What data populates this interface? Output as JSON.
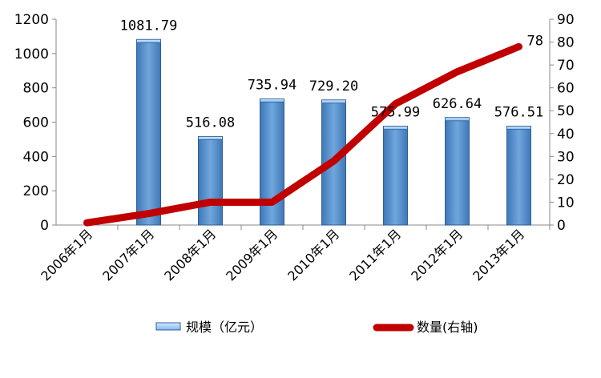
{
  "chart_data": {
    "type": "bar+line",
    "categories": [
      "2006年1月",
      "2007年1月",
      "2008年1月",
      "2009年1月",
      "2010年1月",
      "2011年1月",
      "2012年1月",
      "2013年1月"
    ],
    "series": [
      {
        "name": "规模（亿元）",
        "type": "bar",
        "axis": "left",
        "color": "#5b9bd5",
        "values": [
          null,
          1081.79,
          516.08,
          735.94,
          729.2,
          575.99,
          626.64,
          576.51
        ],
        "labels": [
          "",
          "1081.79",
          "516.08",
          "735.94",
          "729.20",
          "575.99",
          "626.64",
          "576.51"
        ]
      },
      {
        "name": "数量(右轴)",
        "type": "line",
        "axis": "right",
        "color": "#c00000",
        "values": [
          1,
          5,
          10,
          10,
          28,
          53,
          67,
          78
        ],
        "labels": [
          "",
          "",
          "",
          "",
          "",
          "",
          "",
          "78"
        ]
      }
    ],
    "y_left": {
      "min": 0,
      "max": 1200,
      "ticks": [
        "0",
        "200",
        "400",
        "600",
        "800",
        "1000",
        "1200"
      ]
    },
    "y_right": {
      "min": 0,
      "max": 90,
      "ticks": [
        "0",
        "10",
        "20",
        "30",
        "40",
        "50",
        "60",
        "70",
        "80",
        "90"
      ]
    },
    "grid": false,
    "legend_position": "bottom"
  }
}
